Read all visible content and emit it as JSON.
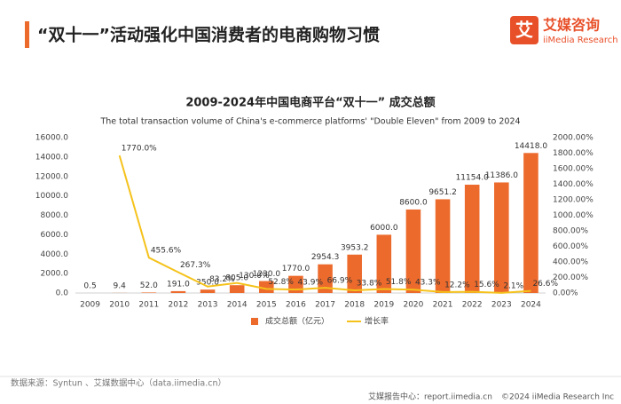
{
  "header": {
    "title": "“双十一”活动强化中国消费者的电商购物习惯",
    "logo_mark": "艾",
    "logo_name": "艾媒咨询",
    "logo_sub": "iiMedia Research"
  },
  "chart_data": {
    "type": "bar",
    "title": "2009-2024年中国电商平台“双十一” 成交总额",
    "subtitle": "The total transaction volume of China's e-commerce platforms' \"Double Eleven\" from 2009 to 2024",
    "categories": [
      "2009",
      "2010",
      "2011",
      "2012",
      "2013",
      "2014",
      "2015",
      "2016",
      "2017",
      "2018",
      "2019",
      "2020",
      "2021",
      "2022",
      "2023",
      "2024"
    ],
    "series": [
      {
        "name": "成交总额（亿元）",
        "type": "bar",
        "color": "#ec6a2c",
        "values": [
          0.5,
          9.4,
          52.0,
          191.0,
          350.0,
          805.0,
          1230.0,
          1770.0,
          2954.3,
          3953.2,
          6000.0,
          8600.0,
          9651.2,
          11154.0,
          11386.0,
          14418.0
        ],
        "value_labels": [
          "0.5",
          "9.4",
          "52.0",
          "191.0",
          "350.0",
          "805.0",
          "1230.0",
          "1770.0",
          "2954.3",
          "3953.2",
          "6000.0",
          "8600.0",
          "9651.2",
          "11154.0",
          "11386.0",
          "14418.0"
        ]
      },
      {
        "name": "增长率",
        "type": "line",
        "axis": "y2",
        "color": "#f5c21b",
        "values": [
          null,
          1770.0,
          455.6,
          267.3,
          83.2,
          130.0,
          52.8,
          43.9,
          66.9,
          33.8,
          51.8,
          43.3,
          12.2,
          15.6,
          2.1,
          26.6
        ],
        "value_labels": [
          null,
          "1770.0%",
          "455.6%",
          "267.3%",
          "83.2%",
          "130.0%",
          "52.8%",
          "43.9%",
          "66.9%",
          "33.8%",
          "51.8%",
          "43.3%",
          "12.2%",
          "15.6%",
          "2.1%",
          "26.6%"
        ]
      }
    ],
    "ylim": [
      0,
      16000
    ],
    "yticks": [
      {
        "value": 0,
        "label": "0.0"
      },
      {
        "value": 2000,
        "label": "2000.0"
      },
      {
        "value": 4000,
        "label": "4000.0"
      },
      {
        "value": 6000,
        "label": "6000.0"
      },
      {
        "value": 8000,
        "label": "8000.0"
      },
      {
        "value": 10000,
        "label": "10000.0"
      },
      {
        "value": 12000,
        "label": "12000.0"
      },
      {
        "value": 14000,
        "label": "14000.0"
      },
      {
        "value": 16000,
        "label": "16000.0"
      }
    ],
    "y2lim": [
      0,
      2000
    ],
    "y2ticks": [
      {
        "value": 0,
        "label": "0.00%"
      },
      {
        "value": 200,
        "label": "200.00%"
      },
      {
        "value": 400,
        "label": "400.00%"
      },
      {
        "value": 600,
        "label": "600.00%"
      },
      {
        "value": 800,
        "label": "800.00%"
      },
      {
        "value": 1000,
        "label": "1000.00%"
      },
      {
        "value": 1200,
        "label": "1200.00%"
      },
      {
        "value": 1400,
        "label": "1400.00%"
      },
      {
        "value": 1600,
        "label": "1600.00%"
      },
      {
        "value": 1800,
        "label": "1800.00%"
      },
      {
        "value": 2000,
        "label": "2000.00%"
      }
    ],
    "grid": false,
    "legend": "bottom"
  },
  "footer": {
    "source": "数据来源：Syntun 、艾媒数据中心（data.iimedia.cn）",
    "report": "艾媒报告中心：report.iimedia.cn",
    "copyright": "©2024  iiMedia Research  Inc"
  }
}
